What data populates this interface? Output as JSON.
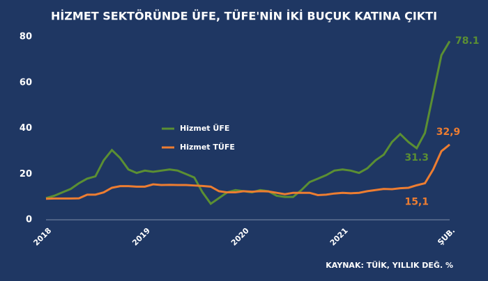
{
  "chart_data": {
    "type": "line",
    "title": "HİZMET SEKTÖRÜNDE ÜFE, TÜFE'NİN İKİ BUÇUK KATINA ÇIKTI",
    "source": "KAYNAK: TÜİK, YILLIK DEĞ. %",
    "categories": [
      "2018",
      null,
      null,
      null,
      null,
      null,
      null,
      null,
      null,
      null,
      null,
      null,
      "2019",
      null,
      null,
      null,
      null,
      null,
      null,
      null,
      null,
      null,
      null,
      null,
      "2020",
      null,
      null,
      null,
      null,
      null,
      null,
      null,
      null,
      null,
      null,
      null,
      "2021",
      null,
      null,
      null,
      null,
      null,
      null,
      null,
      null,
      null,
      null,
      null,
      null,
      "ŞUB."
    ],
    "series": [
      {
        "name": "Hizmet ÜFE",
        "color": "#5b8f33",
        "values": [
          9.5,
          10.5,
          12,
          13.5,
          16,
          18,
          19,
          26,
          30.5,
          27,
          22,
          20.5,
          21.5,
          21,
          21.5,
          22,
          21.5,
          20,
          18.5,
          12,
          7,
          9.5,
          12,
          13,
          12.5,
          12,
          13,
          12.5,
          10.5,
          10,
          10,
          13,
          16.5,
          18,
          19.5,
          21.5,
          22,
          21.5,
          20.5,
          22.5,
          26,
          28.5,
          34,
          37.5,
          34,
          31.3,
          38,
          55,
          72,
          78.1
        ],
        "value_labels": [
          null,
          null,
          null,
          null,
          null,
          null,
          null,
          null,
          null,
          null,
          null,
          null,
          null,
          null,
          null,
          null,
          null,
          null,
          null,
          null,
          null,
          null,
          null,
          null,
          null,
          null,
          null,
          null,
          null,
          null,
          null,
          null,
          null,
          null,
          null,
          null,
          null,
          null,
          null,
          null,
          null,
          null,
          null,
          null,
          null,
          "31.3",
          null,
          null,
          null,
          "78.1"
        ]
      },
      {
        "name": "Hizmet TÜFE",
        "color": "#ed7d31",
        "values": [
          9.2,
          9.3,
          9.3,
          9.3,
          9.4,
          11,
          11,
          12,
          14,
          14.7,
          14.7,
          14.5,
          14.5,
          15.5,
          15.2,
          15.3,
          15.2,
          15.2,
          15,
          14.8,
          14.5,
          12.5,
          12,
          12,
          12.5,
          12.3,
          12.5,
          12.4,
          11.8,
          11.2,
          11.8,
          11.8,
          11.8,
          10.8,
          11,
          11.5,
          11.8,
          11.6,
          11.8,
          12.5,
          13,
          13.5,
          13.4,
          13.8,
          14,
          15.1,
          16,
          22,
          30,
          32.9
        ],
        "value_labels": [
          null,
          null,
          null,
          null,
          null,
          null,
          null,
          null,
          null,
          null,
          null,
          null,
          null,
          null,
          null,
          null,
          null,
          null,
          null,
          null,
          null,
          null,
          null,
          null,
          null,
          null,
          null,
          null,
          null,
          null,
          null,
          null,
          null,
          null,
          null,
          null,
          null,
          null,
          null,
          null,
          null,
          null,
          null,
          null,
          null,
          "15,1",
          null,
          null,
          null,
          "32,9"
        ]
      }
    ],
    "ylim": [
      0,
      80
    ],
    "yticks": [
      0,
      20,
      40,
      60,
      80
    ],
    "grid": false
  }
}
